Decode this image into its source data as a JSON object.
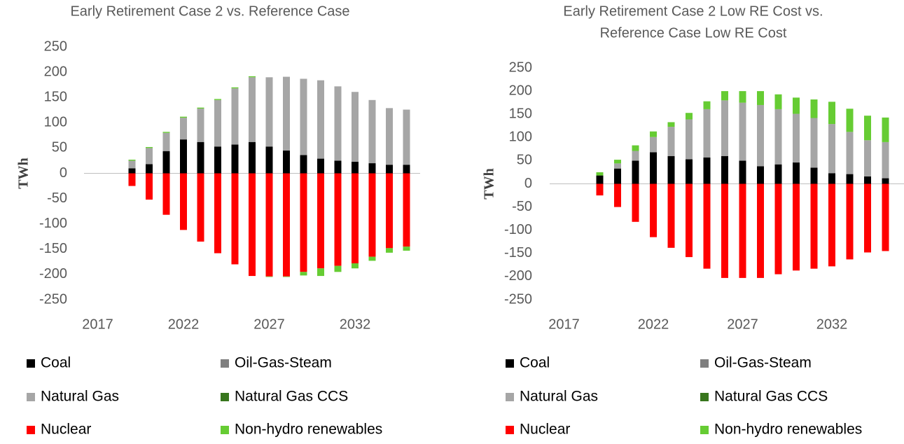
{
  "chart_data": [
    {
      "type": "bar",
      "stacked": true,
      "title": [
        "Early Retirement Case 2 vs. Reference Case"
      ],
      "y_label": "TWh",
      "x": [
        2019,
        2020,
        2021,
        2022,
        2023,
        2024,
        2025,
        2026,
        2027,
        2028,
        2029,
        2030,
        2031,
        2032,
        2033,
        2034,
        2035
      ],
      "xlim": [
        2016,
        2036
      ],
      "xticks": [
        2017,
        2022,
        2027,
        2032
      ],
      "ylim": [
        -250,
        250
      ],
      "yticks": [
        -250,
        -200,
        -150,
        -100,
        -50,
        0,
        50,
        100,
        150,
        200,
        250
      ],
      "series": [
        {
          "name": "Coal",
          "color": "#000000",
          "values": [
            10,
            18,
            44,
            67,
            62,
            53,
            57,
            62,
            53,
            45,
            36,
            29,
            25,
            23,
            20,
            17,
            17
          ]
        },
        {
          "name": "Oil-Gas-Steam",
          "color": "#7f7f7f",
          "values": [
            0,
            0,
            0,
            0,
            0,
            0,
            0,
            0,
            0,
            0,
            0,
            0,
            0,
            0,
            0,
            0,
            0
          ]
        },
        {
          "name": "Natural Gas",
          "color": "#a6a6a6",
          "values": [
            15,
            32,
            36,
            43,
            66,
            92,
            111,
            128,
            137,
            146,
            151,
            155,
            147,
            138,
            125,
            112,
            109
          ]
        },
        {
          "name": "Natural Gas CCS",
          "color": "#38761d",
          "values": [
            0,
            0,
            0,
            0,
            0,
            0,
            0,
            0,
            0,
            0,
            0,
            0,
            0,
            0,
            0,
            0,
            0
          ]
        },
        {
          "name": "Nuclear",
          "color": "#ff0000",
          "values": [
            -25,
            -52,
            -82,
            -112,
            -135,
            -158,
            -180,
            -203,
            -204,
            -204,
            -195,
            -188,
            -183,
            -178,
            -165,
            -148,
            -145
          ]
        },
        {
          "name": "Non-hydro renewables",
          "color": "#66cc33",
          "values": [
            2,
            2,
            2,
            2,
            2,
            2,
            2,
            2,
            -1,
            -1,
            -7,
            -15,
            -12,
            -10,
            -8,
            -9,
            -8
          ]
        }
      ]
    },
    {
      "type": "bar",
      "stacked": true,
      "title": [
        "Early Retirement Case 2 Low RE Cost vs.",
        "Reference Case Low RE Cost"
      ],
      "y_label": "TWh",
      "x": [
        2019,
        2020,
        2021,
        2022,
        2023,
        2024,
        2025,
        2026,
        2027,
        2028,
        2029,
        2030,
        2031,
        2032,
        2033,
        2034,
        2035
      ],
      "xlim": [
        2016,
        2036
      ],
      "xticks": [
        2017,
        2022,
        2027,
        2032
      ],
      "ylim": [
        -250,
        250
      ],
      "yticks": [
        -250,
        -200,
        -150,
        -100,
        -50,
        0,
        50,
        100,
        150,
        200,
        250
      ],
      "series": [
        {
          "name": "Coal",
          "color": "#000000",
          "values": [
            18,
            33,
            50,
            68,
            60,
            53,
            57,
            60,
            50,
            38,
            42,
            46,
            35,
            23,
            21,
            16,
            12
          ]
        },
        {
          "name": "Oil-Gas-Steam",
          "color": "#7f7f7f",
          "values": [
            0,
            0,
            0,
            0,
            0,
            0,
            0,
            0,
            0,
            0,
            0,
            0,
            0,
            0,
            0,
            0,
            0
          ]
        },
        {
          "name": "Natural Gas",
          "color": "#a6a6a6",
          "values": [
            0,
            11,
            21,
            33,
            63,
            86,
            104,
            120,
            125,
            132,
            119,
            105,
            107,
            106,
            91,
            78,
            78
          ]
        },
        {
          "name": "Natural Gas CCS",
          "color": "#38761d",
          "values": [
            0,
            0,
            0,
            0,
            0,
            0,
            0,
            0,
            0,
            0,
            0,
            0,
            0,
            0,
            0,
            0,
            0
          ]
        },
        {
          "name": "Nuclear",
          "color": "#ff0000",
          "values": [
            -25,
            -50,
            -82,
            -115,
            -138,
            -158,
            -183,
            -203,
            -203,
            -203,
            -195,
            -187,
            -183,
            -178,
            -163,
            -148,
            -145
          ]
        },
        {
          "name": "Non-hydro renewables",
          "color": "#66cc33",
          "values": [
            7,
            8,
            12,
            12,
            10,
            14,
            17,
            20,
            25,
            30,
            32,
            35,
            40,
            48,
            50,
            53,
            53
          ]
        }
      ]
    }
  ]
}
